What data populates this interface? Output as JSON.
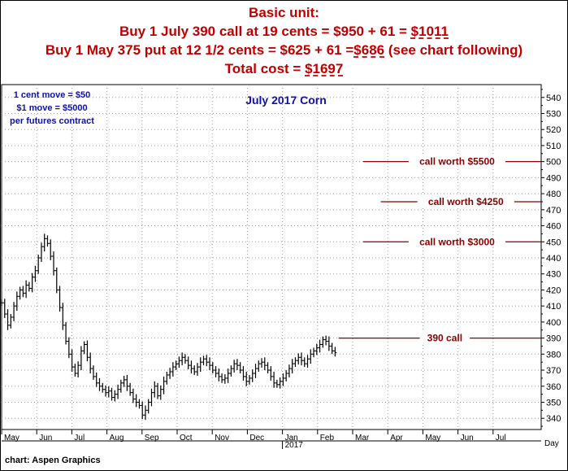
{
  "header": {
    "line1": "Basic unit:",
    "line2_pre": "Buy 1 July 390 call at 19 cents = $950 + 61 = ",
    "line2_total": "$1011",
    "line3_pre": "Buy 1 May 375 put at 12 1/2 cents = $625 + 61 =",
    "line3_total": "$686",
    "line3_post": " (see chart following)",
    "line4_pre": "Total cost = ",
    "line4_total": "$1697"
  },
  "source": "chart: Aspen Graphics",
  "chart_data": {
    "type": "bar",
    "title": "July 2017 Corn",
    "notes": [
      "1 cent move = $50",
      "$1 move = $5000",
      "per futures contract"
    ],
    "ylim": [
      333,
      548
    ],
    "yticks": [
      340,
      350,
      360,
      370,
      380,
      390,
      400,
      410,
      420,
      430,
      440,
      450,
      460,
      470,
      480,
      490,
      500,
      510,
      520,
      530,
      540
    ],
    "xlabels": [
      "May",
      "Jun",
      "Jul",
      "Aug",
      "Sep",
      "Oct",
      "Nov",
      "Dec",
      "Jan",
      "Feb",
      "Mar",
      "Apr",
      "May",
      "Jun",
      "Jul"
    ],
    "xlabel_months_index": [
      0,
      1,
      2,
      3,
      4,
      5,
      6,
      7,
      8,
      9,
      10,
      11,
      12,
      13,
      14
    ],
    "year_label": "2017",
    "year_label_month_index": 8,
    "axis_unit_label": "Day",
    "grid": true,
    "price_series": {
      "name": "",
      "start_month_index": 0,
      "values": [
        412,
        405,
        398,
        403,
        410,
        416,
        420,
        418,
        423,
        421,
        428,
        432,
        440,
        447,
        452,
        449,
        441,
        432,
        420,
        409,
        398,
        388,
        380,
        372,
        368,
        373,
        382,
        386,
        378,
        371,
        366,
        362,
        360,
        358,
        356,
        357,
        353,
        355,
        358,
        362,
        364,
        360,
        356,
        352,
        350,
        348,
        342,
        345,
        350,
        356,
        360,
        354,
        358,
        363,
        367,
        369,
        372,
        374,
        376,
        378,
        376,
        373,
        371,
        369,
        372,
        375,
        377,
        375,
        373,
        370,
        368,
        366,
        364,
        365,
        368,
        371,
        374,
        373,
        370,
        366,
        363,
        365,
        368,
        371,
        374,
        375,
        373,
        370,
        366,
        362,
        361,
        363,
        365,
        368,
        371,
        374,
        376,
        378,
        376,
        374,
        377,
        380,
        382,
        384,
        386,
        389,
        388,
        385,
        382,
        381
      ]
    },
    "levels": [
      {
        "label": "call worth $5500",
        "value": 500,
        "start_month_index": 10.3
      },
      {
        "label": "call worth $4250",
        "value": 475,
        "start_month_index": 10.8
      },
      {
        "label": "call worth $3000",
        "value": 450,
        "start_month_index": 10.3
      },
      {
        "label": "390 call",
        "value": 390,
        "start_month_index": 9.6
      }
    ]
  }
}
